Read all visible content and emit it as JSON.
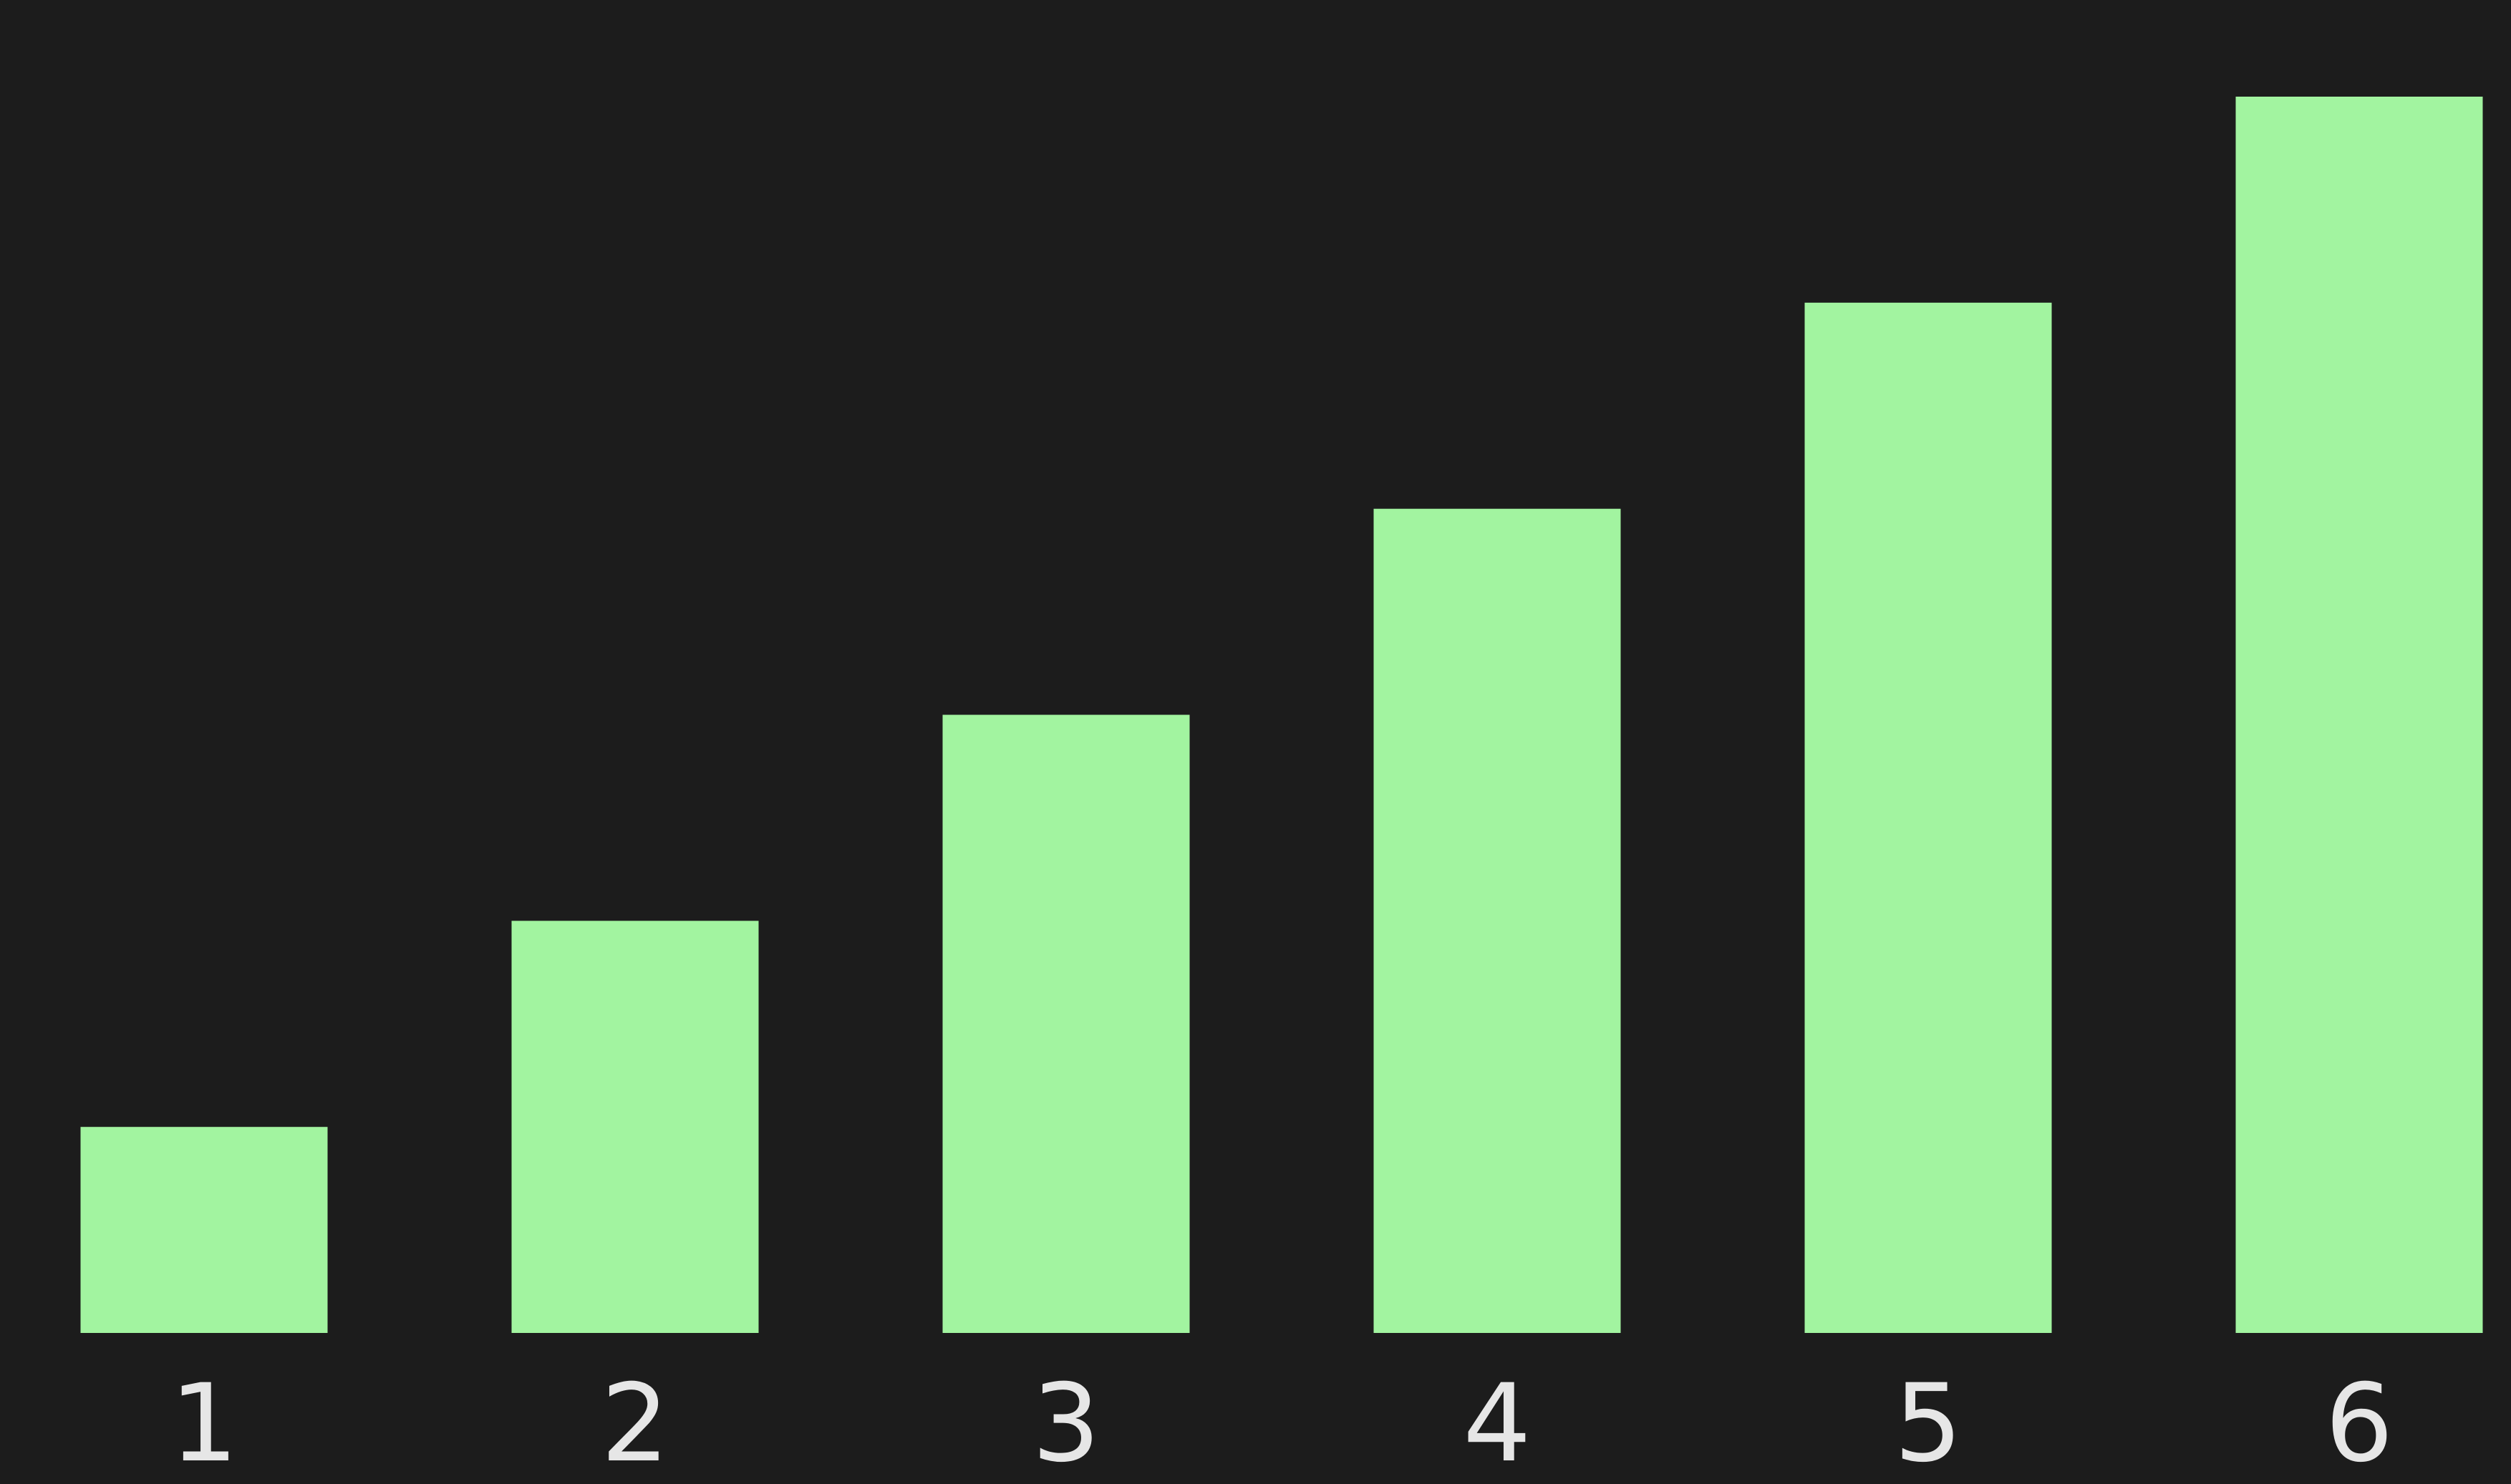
{
  "chart_data": {
    "type": "bar",
    "categories": [
      "1",
      "2",
      "3",
      "4",
      "5",
      "6"
    ],
    "values": [
      1,
      2,
      3,
      4,
      5,
      6
    ],
    "title": "",
    "xlabel": "",
    "ylabel": "",
    "ylim": [
      0,
      6
    ],
    "grid": false,
    "colors": {
      "background": "#1c1c1c",
      "bar": "#a2f4a0",
      "tick_label": "#e6e6e6"
    }
  }
}
